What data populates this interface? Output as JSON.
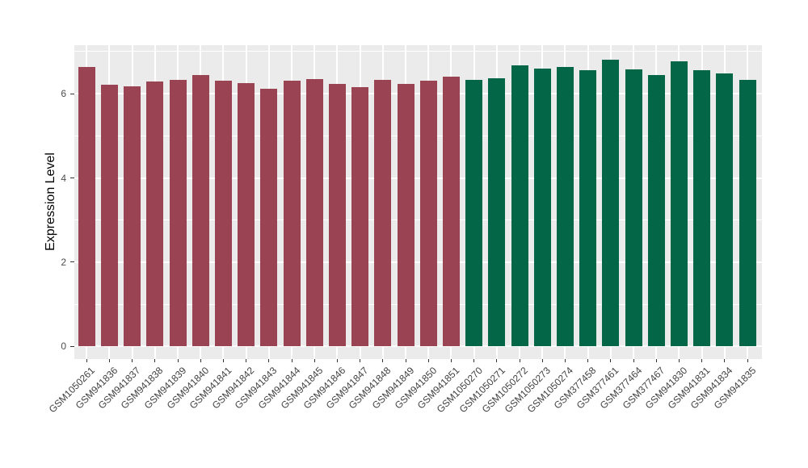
{
  "chart_data": {
    "type": "bar",
    "title": "",
    "xlabel": "",
    "ylabel": "Expression Level",
    "categories": [
      "GSM1050261",
      "GSM941836",
      "GSM941837",
      "GSM941838",
      "GSM941839",
      "GSM941840",
      "GSM941841",
      "GSM941842",
      "GSM941843",
      "GSM941844",
      "GSM941845",
      "GSM941846",
      "GSM941847",
      "GSM941848",
      "GSM941849",
      "GSM941850",
      "GSM941851",
      "GSM1050270",
      "GSM1050271",
      "GSM1050272",
      "GSM1050273",
      "GSM1050274",
      "GSM377458",
      "GSM377461",
      "GSM377464",
      "GSM377467",
      "GSM941830",
      "GSM941831",
      "GSM941834",
      "GSM941835"
    ],
    "values": [
      6.63,
      6.21,
      6.17,
      6.29,
      6.33,
      6.44,
      6.31,
      6.25,
      6.11,
      6.31,
      6.34,
      6.23,
      6.15,
      6.32,
      6.24,
      6.3,
      6.4,
      6.32,
      6.37,
      6.68,
      6.6,
      6.63,
      6.56,
      6.81,
      6.58,
      6.44,
      6.77,
      6.56,
      6.49,
      6.32
    ],
    "bar_groups": [
      {
        "color": "#9a4352",
        "start": 0,
        "count": 17
      },
      {
        "color": "#026647",
        "start": 17,
        "count": 13
      }
    ],
    "yticks": [
      0,
      2,
      4,
      6
    ],
    "yticks_minor": [
      1,
      3,
      5,
      7
    ],
    "ylim": [
      0,
      7.15
    ],
    "grid": true,
    "legend": "none",
    "panel_bg": "#ebebeb",
    "grid_color": "#ffffff",
    "tick_color": "#333333",
    "axis_text_color": "#4d4d4d"
  }
}
